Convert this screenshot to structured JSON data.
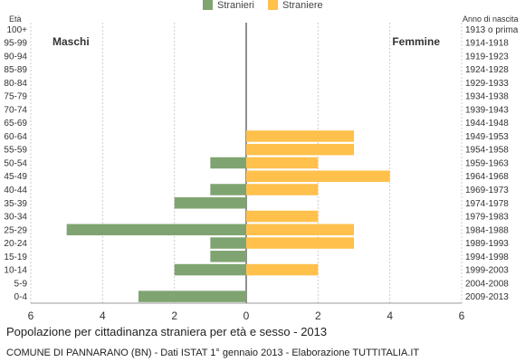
{
  "chart_data": {
    "type": "bar",
    "orientation": "horizontal-population-pyramid",
    "title": "Popolazione per cittadinanza straniera per età e sesso - 2013",
    "subtitle": "COMUNE DI PANNARANO (BN) - Dati ISTAT 1° gennaio 2013 - Elaborazione TUTTITALIA.IT",
    "left_axis_title": "Età",
    "right_axis_title": "Anno di nascita",
    "left_side_label": "Maschi",
    "right_side_label": "Femmine",
    "legend": [
      {
        "name": "Stranieri",
        "color": "#7fa471"
      },
      {
        "name": "Straniere",
        "color": "#ffc04c"
      }
    ],
    "legend_position": "top-center",
    "x_ticks": [
      "6",
      "4",
      "2",
      "0",
      "2",
      "4",
      "6"
    ],
    "xlim": [
      -6,
      6
    ],
    "grid": true,
    "categories": [
      "100+",
      "95-99",
      "90-94",
      "85-89",
      "80-84",
      "75-79",
      "70-74",
      "65-69",
      "60-64",
      "55-59",
      "50-54",
      "45-49",
      "40-44",
      "35-39",
      "30-34",
      "25-29",
      "20-24",
      "15-19",
      "10-14",
      "5-9",
      "0-4"
    ],
    "birth_years": [
      "1913 o prima",
      "1914-1918",
      "1919-1923",
      "1924-1928",
      "1929-1933",
      "1934-1938",
      "1939-1943",
      "1944-1948",
      "1949-1953",
      "1954-1958",
      "1959-1963",
      "1964-1968",
      "1969-1973",
      "1974-1978",
      "1979-1983",
      "1984-1988",
      "1989-1993",
      "1994-1998",
      "1999-2003",
      "2004-2008",
      "2009-2013"
    ],
    "series": [
      {
        "name": "Stranieri",
        "values": [
          0,
          0,
          0,
          0,
          0,
          0,
          0,
          0,
          0,
          0,
          1,
          0,
          1,
          2,
          0,
          5,
          1,
          1,
          2,
          0,
          3
        ]
      },
      {
        "name": "Straniere",
        "values": [
          0,
          0,
          0,
          0,
          0,
          0,
          0,
          0,
          3,
          3,
          2,
          4,
          2,
          0,
          2,
          3,
          3,
          0,
          2,
          0,
          0
        ]
      }
    ]
  }
}
